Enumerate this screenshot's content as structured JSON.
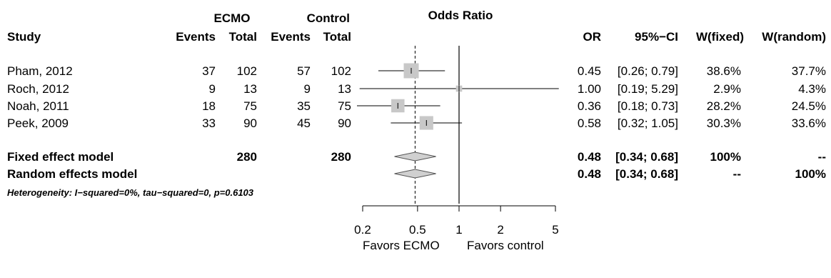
{
  "chart_data": {
    "type": "forest",
    "title": "Odds Ratio",
    "group_headers": {
      "ecmo": "ECMO",
      "control": "Control"
    },
    "column_headers": {
      "study": "Study",
      "ecmo_events": "Events",
      "ecmo_total": "Total",
      "control_events": "Events",
      "control_total": "Total",
      "or": "OR",
      "ci": "95%−CI",
      "w_fixed": "W(fixed)",
      "w_random": "W(random)"
    },
    "studies": [
      {
        "name": "Pham, 2012",
        "ecmo_events": "37",
        "ecmo_total": "102",
        "control_events": "57",
        "control_total": "102",
        "or": 0.45,
        "lower": 0.26,
        "upper": 0.79,
        "or_text": "0.45",
        "ci_text": "[0.26; 0.79]",
        "w_fixed": "38.6%",
        "w_random": "37.7%",
        "weight": 38.6
      },
      {
        "name": "Roch, 2012",
        "ecmo_events": "9",
        "ecmo_total": "13",
        "control_events": "9",
        "control_total": "13",
        "or": 1.0,
        "lower": 0.19,
        "upper": 5.29,
        "or_text": "1.00",
        "ci_text": "[0.19; 5.29]",
        "w_fixed": "2.9%",
        "w_random": "4.3%",
        "weight": 2.9
      },
      {
        "name": "Noah, 2011",
        "ecmo_events": "18",
        "ecmo_total": "75",
        "control_events": "35",
        "control_total": "75",
        "or": 0.36,
        "lower": 0.18,
        "upper": 0.73,
        "or_text": "0.36",
        "ci_text": "[0.18; 0.73]",
        "w_fixed": "28.2%",
        "w_random": "24.5%",
        "weight": 28.2
      },
      {
        "name": "Peek, 2009",
        "ecmo_events": "33",
        "ecmo_total": "90",
        "control_events": "45",
        "control_total": "90",
        "or": 0.58,
        "lower": 0.32,
        "upper": 1.05,
        "or_text": "0.58",
        "ci_text": "[0.32; 1.05]",
        "w_fixed": "30.3%",
        "w_random": "33.6%",
        "weight": 30.3
      }
    ],
    "summaries": [
      {
        "name": "Fixed effect model",
        "ecmo_total": "280",
        "control_total": "280",
        "or": 0.48,
        "lower": 0.34,
        "upper": 0.68,
        "or_text": "0.48",
        "ci_text": "[0.34; 0.68]",
        "w_fixed": "100%",
        "w_random": "--"
      },
      {
        "name": "Random effects model",
        "ecmo_total": "",
        "control_total": "",
        "or": 0.48,
        "lower": 0.34,
        "upper": 0.68,
        "or_text": "0.48",
        "ci_text": "[0.34; 0.68]",
        "w_fixed": "--",
        "w_random": "100%"
      }
    ],
    "heterogeneity": "Heterogeneity: I−squared=0%, tau−squared=0, p=0.6103",
    "x_axis": {
      "scale": "log",
      "ticks": [
        0.2,
        0.5,
        1,
        2,
        5
      ],
      "tick_labels": [
        "0.2",
        "0.5",
        "1",
        "2",
        "5"
      ],
      "xlim": [
        0.2,
        5
      ],
      "null_line": 1
    },
    "favors_labels": {
      "left": "Favors ECMO",
      "right": "Favors control"
    },
    "colors": {
      "box": "#c8c8c8",
      "diamond": "#d0d0d0",
      "line": "#000000"
    }
  }
}
